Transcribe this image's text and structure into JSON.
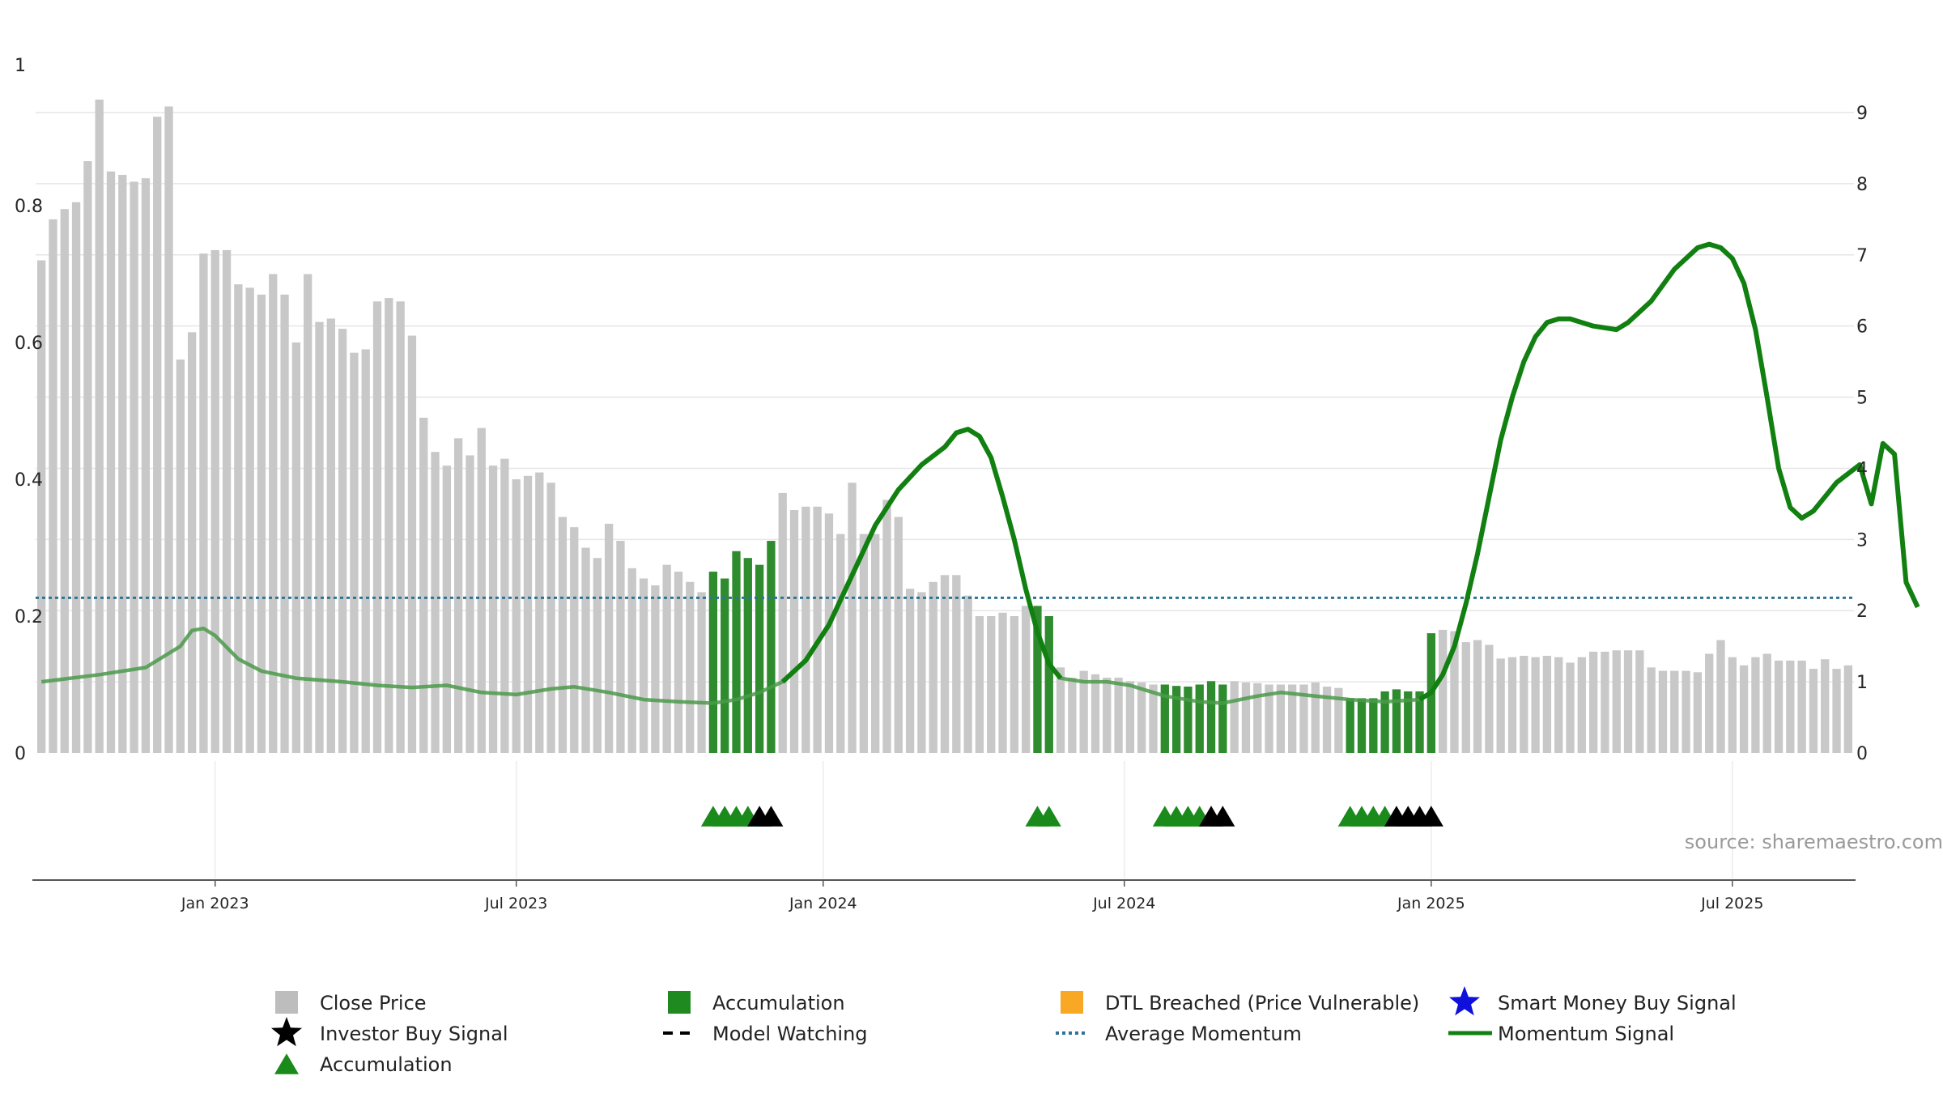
{
  "source": "source: sharemaestro.com",
  "colors": {
    "close_bar": "#c8c8c8",
    "accum_bar": "#2e8b2e",
    "momentum_line": "#118011",
    "avg_momentum": "#2f7396",
    "accum_marker": "#1a8a1a",
    "investor_marker": "#000000",
    "dtl": "#f9a825",
    "smart_money": "#1010dd"
  },
  "legend": [
    {
      "label": "Close Price",
      "kind": "square",
      "color": "#bdbdbd"
    },
    {
      "label": "Accumulation",
      "kind": "square",
      "color": "#1f8a1f"
    },
    {
      "label": "DTL Breached (Price Vulnerable)",
      "kind": "square",
      "color": "#f9a825"
    },
    {
      "label": "Smart Money Buy Signal",
      "kind": "star",
      "color": "#1010dd"
    },
    {
      "label": "Investor Buy Signal",
      "kind": "star",
      "color": "#000000"
    },
    {
      "label": "Model Watching",
      "kind": "dash",
      "color": "#000000"
    },
    {
      "label": "Average Momentum",
      "kind": "dotted",
      "color": "#2f7396"
    },
    {
      "label": "Momentum Signal",
      "kind": "line",
      "color": "#118011"
    },
    {
      "label": "Accumulation",
      "kind": "triangle",
      "color": "#1a8a1a"
    }
  ],
  "chart_data": {
    "type": "bar",
    "x_scale": "weekly bars, Oct 2022 – Sep 2025",
    "left_axis": {
      "ticks": [
        "0",
        "0.2",
        "0.4",
        "0.6",
        "0.8",
        "1"
      ],
      "ylim": [
        0,
        1
      ]
    },
    "right_axis": {
      "ticks": [
        "0",
        "1",
        "2",
        "3",
        "4",
        "5",
        "6",
        "7",
        "8",
        "9"
      ],
      "ylim": [
        0,
        9
      ]
    },
    "x_ticks": [
      "Jan 2023",
      "Jul 2023",
      "Jan 2024",
      "Jul 2024",
      "Jan 2025",
      "Jul 2025"
    ],
    "close_price": [
      0.72,
      0.78,
      0.795,
      0.805,
      0.865,
      0.955,
      0.85,
      0.845,
      0.835,
      0.84,
      0.93,
      0.945,
      0.575,
      0.615,
      0.73,
      0.735,
      0.735,
      0.685,
      0.68,
      0.67,
      0.7,
      0.67,
      0.6,
      0.7,
      0.63,
      0.635,
      0.62,
      0.585,
      0.59,
      0.66,
      0.665,
      0.66,
      0.61,
      0.49,
      0.44,
      0.42,
      0.46,
      0.435,
      0.475,
      0.42,
      0.43,
      0.4,
      0.405,
      0.41,
      0.395,
      0.345,
      0.33,
      0.3,
      0.285,
      0.335,
      0.31,
      0.27,
      0.255,
      0.245,
      0.275,
      0.265,
      0.25,
      0.235,
      0.265,
      0.255,
      0.295,
      0.285,
      0.275,
      0.31,
      0.38,
      0.355,
      0.36,
      0.36,
      0.35,
      0.32,
      0.395,
      0.32,
      0.32,
      0.37,
      0.345,
      0.24,
      0.235,
      0.25,
      0.26,
      0.26,
      0.23,
      0.2,
      0.2,
      0.205,
      0.2,
      0.215,
      0.215,
      0.2,
      0.125,
      0.11,
      0.12,
      0.115,
      0.11,
      0.11,
      0.105,
      0.103,
      0.1,
      0.1,
      0.098,
      0.097,
      0.1,
      0.105,
      0.1,
      0.105,
      0.103,
      0.102,
      0.1,
      0.1,
      0.1,
      0.1,
      0.103,
      0.097,
      0.095,
      0.08,
      0.08,
      0.08,
      0.09,
      0.093,
      0.09,
      0.09,
      0.175,
      0.18,
      0.178,
      0.162,
      0.165,
      0.158,
      0.138,
      0.14,
      0.142,
      0.14,
      0.142,
      0.14,
      0.132,
      0.14,
      0.148,
      0.148,
      0.15,
      0.15,
      0.15,
      0.125,
      0.12,
      0.12,
      0.12,
      0.118,
      0.145,
      0.165,
      0.14,
      0.128,
      0.14,
      0.145,
      0.135,
      0.135,
      0.135,
      0.123,
      0.137,
      0.123,
      0.128
    ],
    "accumulation_bars": [
      [
        58,
        63
      ],
      [
        86,
        87
      ],
      [
        97,
        102
      ],
      [
        113,
        120
      ]
    ],
    "momentum_avg": 2.18,
    "momentum": [
      [
        0,
        1.0
      ],
      [
        5,
        1.1
      ],
      [
        9,
        1.2
      ],
      [
        12,
        1.5
      ],
      [
        13,
        1.72
      ],
      [
        14,
        1.75
      ],
      [
        15,
        1.65
      ],
      [
        17,
        1.32
      ],
      [
        19,
        1.15
      ],
      [
        22,
        1.05
      ],
      [
        26,
        1.0
      ],
      [
        29,
        0.95
      ],
      [
        32,
        0.92
      ],
      [
        35,
        0.95
      ],
      [
        38,
        0.85
      ],
      [
        41,
        0.82
      ],
      [
        44,
        0.9
      ],
      [
        46,
        0.93
      ],
      [
        49,
        0.85
      ],
      [
        52,
        0.75
      ],
      [
        55,
        0.72
      ],
      [
        58,
        0.7
      ],
      [
        60,
        0.75
      ],
      [
        62,
        0.85
      ],
      [
        64,
        1.0
      ],
      [
        66,
        1.3
      ],
      [
        68,
        1.8
      ],
      [
        70,
        2.5
      ],
      [
        72,
        3.2
      ],
      [
        74,
        3.7
      ],
      [
        76,
        4.05
      ],
      [
        78,
        4.3
      ],
      [
        79,
        4.5
      ],
      [
        80,
        4.55
      ],
      [
        81,
        4.45
      ],
      [
        82,
        4.15
      ],
      [
        83,
        3.6
      ],
      [
        84,
        3.0
      ],
      [
        85,
        2.3
      ],
      [
        86,
        1.7
      ],
      [
        87,
        1.25
      ],
      [
        88,
        1.05
      ],
      [
        90,
        1.0
      ],
      [
        92,
        1.0
      ],
      [
        94,
        0.95
      ],
      [
        97,
        0.8
      ],
      [
        100,
        0.72
      ],
      [
        102,
        0.7
      ],
      [
        105,
        0.8
      ],
      [
        107,
        0.85
      ],
      [
        110,
        0.8
      ],
      [
        113,
        0.75
      ],
      [
        116,
        0.72
      ],
      [
        119,
        0.75
      ],
      [
        120,
        0.85
      ],
      [
        121,
        1.1
      ],
      [
        122,
        1.5
      ],
      [
        123,
        2.1
      ],
      [
        124,
        2.8
      ],
      [
        125,
        3.6
      ],
      [
        126,
        4.4
      ],
      [
        127,
        5.0
      ],
      [
        128,
        5.5
      ],
      [
        129,
        5.85
      ],
      [
        130,
        6.05
      ],
      [
        131,
        6.1
      ],
      [
        132,
        6.1
      ],
      [
        134,
        6.0
      ],
      [
        136,
        5.95
      ],
      [
        137,
        6.05
      ],
      [
        139,
        6.35
      ],
      [
        141,
        6.8
      ],
      [
        143,
        7.1
      ],
      [
        144,
        7.15
      ],
      [
        145,
        7.1
      ],
      [
        146,
        6.95
      ],
      [
        147,
        6.6
      ],
      [
        148,
        5.95
      ],
      [
        149,
        5.0
      ],
      [
        150,
        4.0
      ],
      [
        151,
        3.45
      ],
      [
        152,
        3.3
      ],
      [
        153,
        3.4
      ],
      [
        154,
        3.6
      ],
      [
        155,
        3.8
      ],
      [
        157,
        4.05
      ],
      [
        158,
        3.5
      ],
      [
        159,
        4.35
      ],
      [
        160,
        4.2
      ],
      [
        161,
        2.4
      ],
      [
        162,
        2.05
      ]
    ],
    "accumulation_markers": [
      58,
      59,
      60,
      61,
      86,
      87,
      97,
      98,
      99,
      100,
      113,
      114,
      115,
      116
    ],
    "investor_markers": [
      62,
      63,
      101,
      102,
      117,
      118,
      119,
      120
    ],
    "x_tick_positions": [
      15,
      41,
      67.5,
      93.5,
      120,
      146
    ]
  }
}
